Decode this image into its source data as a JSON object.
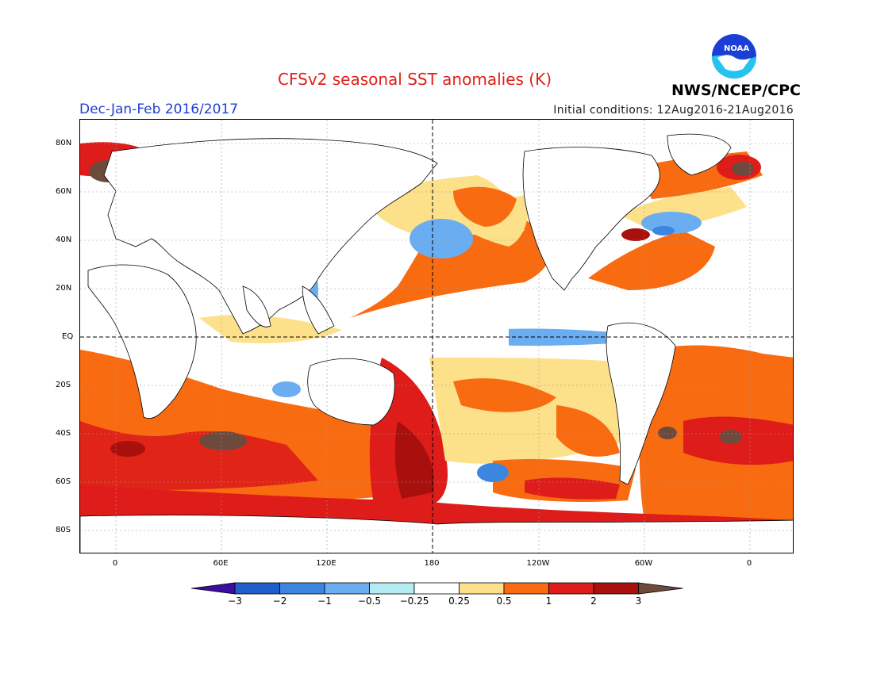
{
  "header": {
    "title": "CFSv2 seasonal SST anomalies (K)",
    "season": "Dec-Jan-Feb 2016/2017",
    "initial_conditions": "Initial conditions: 12Aug2016-21Aug2016",
    "agency": "NWS/NCEP/CPC",
    "logo_text": "NOAA"
  },
  "map": {
    "lat_labels": [
      "80N",
      "60N",
      "40N",
      "20N",
      "EQ",
      "20S",
      "40S",
      "60S",
      "80S"
    ],
    "lon_labels": [
      "0",
      "60E",
      "120E",
      "180",
      "120W",
      "60W",
      "0"
    ],
    "reference_lines": [
      "equator",
      "dateline"
    ]
  },
  "colorbar": {
    "labels": [
      "-3",
      "-2",
      "-1",
      "-0.5",
      "-0.25",
      "0.25",
      "0.5",
      "1",
      "2",
      "3"
    ],
    "colors": [
      "#3d0f9e",
      "#1e5fcc",
      "#3c86e0",
      "#6aadf0",
      "#b4ecf4",
      "#ffffff",
      "#fde08a",
      "#f96b10",
      "#de1d1a",
      "#a8100e",
      "#6e4a3c"
    ]
  }
}
